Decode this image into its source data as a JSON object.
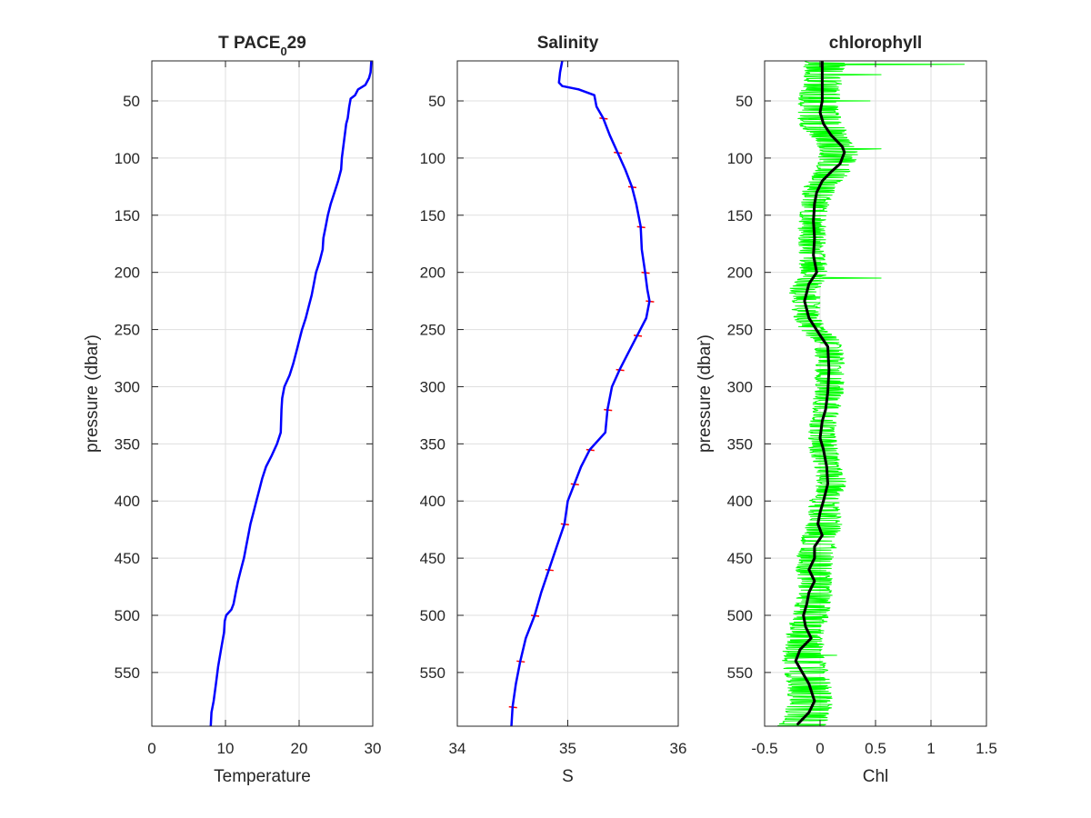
{
  "figure": {
    "background": "#ffffff",
    "axis_color": "#262626",
    "grid_color": "#dfdfdf"
  },
  "chart_data": [
    {
      "type": "line",
      "title": "T PACE",
      "title_subscript": "0",
      "title_suffix": "29",
      "xlabel": "Temperature",
      "ylabel": "pressure (dbar)",
      "xlim": [
        0,
        30
      ],
      "ylim": [
        15,
        597
      ],
      "y_reversed": true,
      "grid": true,
      "xticks": [
        0,
        10,
        20,
        30
      ],
      "yticks": [
        50,
        100,
        150,
        200,
        250,
        300,
        350,
        400,
        450,
        500,
        550
      ],
      "series": [
        {
          "color": "#0000ff",
          "width": 2.5,
          "points": [
            [
              29.8,
              15
            ],
            [
              29.7,
              25
            ],
            [
              29.5,
              30
            ],
            [
              29.0,
              36
            ],
            [
              28.0,
              40
            ],
            [
              27.6,
              45
            ],
            [
              27.0,
              48
            ],
            [
              26.8,
              55
            ],
            [
              26.6,
              65
            ],
            [
              26.4,
              70
            ],
            [
              26.2,
              80
            ],
            [
              26.0,
              90
            ],
            [
              25.8,
              100
            ],
            [
              25.7,
              110
            ],
            [
              25.3,
              120
            ],
            [
              24.8,
              130
            ],
            [
              24.3,
              140
            ],
            [
              23.9,
              150
            ],
            [
              23.6,
              160
            ],
            [
              23.3,
              170
            ],
            [
              23.2,
              180
            ],
            [
              22.8,
              190
            ],
            [
              22.3,
              200
            ],
            [
              22.0,
              210
            ],
            [
              21.7,
              220
            ],
            [
              21.3,
              230
            ],
            [
              20.9,
              240
            ],
            [
              20.4,
              250
            ],
            [
              20.0,
              260
            ],
            [
              19.6,
              270
            ],
            [
              19.2,
              280
            ],
            [
              18.7,
              290
            ],
            [
              18.0,
              300
            ],
            [
              17.7,
              310
            ],
            [
              17.6,
              320
            ],
            [
              17.5,
              340
            ],
            [
              17.0,
              350
            ],
            [
              16.3,
              360
            ],
            [
              15.5,
              370
            ],
            [
              15.0,
              380
            ],
            [
              14.6,
              390
            ],
            [
              14.2,
              400
            ],
            [
              13.8,
              410
            ],
            [
              13.4,
              420
            ],
            [
              13.1,
              430
            ],
            [
              12.8,
              440
            ],
            [
              12.5,
              450
            ],
            [
              12.1,
              460
            ],
            [
              11.7,
              470
            ],
            [
              11.4,
              480
            ],
            [
              11.1,
              490
            ],
            [
              10.8,
              495
            ],
            [
              10.1,
              500
            ],
            [
              9.9,
              505
            ],
            [
              9.8,
              515
            ],
            [
              9.4,
              530
            ],
            [
              9.0,
              545
            ],
            [
              8.7,
              560
            ],
            [
              8.4,
              575
            ],
            [
              8.1,
              585
            ],
            [
              8.0,
              597
            ]
          ]
        }
      ]
    },
    {
      "type": "line",
      "title": "Salinity",
      "xlabel": "S",
      "ylabel": "",
      "xlim": [
        34,
        36
      ],
      "ylim": [
        15,
        597
      ],
      "y_reversed": true,
      "grid": true,
      "xticks": [
        34,
        35,
        36
      ],
      "yticks": [
        50,
        100,
        150,
        200,
        250,
        300,
        350,
        400,
        450,
        500,
        550
      ],
      "series": [
        {
          "color": "#ff0000",
          "width": 1.2,
          "points": [
            [
              34.95,
              15
            ],
            [
              34.93,
              25
            ],
            [
              34.92,
              34
            ],
            [
              34.95,
              37
            ],
            [
              35.1,
              40
            ],
            [
              35.24,
              45
            ],
            [
              35.26,
              55
            ],
            [
              35.32,
              65
            ],
            [
              35.38,
              80
            ],
            [
              35.45,
              95
            ],
            [
              35.52,
              110
            ],
            [
              35.58,
              125
            ],
            [
              35.62,
              140
            ],
            [
              35.66,
              160
            ],
            [
              35.67,
              180
            ],
            [
              35.7,
              200
            ],
            [
              35.72,
              215
            ],
            [
              35.74,
              225
            ],
            [
              35.71,
              240
            ],
            [
              35.63,
              255
            ],
            [
              35.55,
              270
            ],
            [
              35.47,
              285
            ],
            [
              35.4,
              300
            ],
            [
              35.36,
              320
            ],
            [
              35.34,
              340
            ],
            [
              35.2,
              355
            ],
            [
              35.12,
              370
            ],
            [
              35.06,
              385
            ],
            [
              35.0,
              400
            ],
            [
              34.97,
              420
            ],
            [
              34.9,
              440
            ],
            [
              34.83,
              460
            ],
            [
              34.76,
              480
            ],
            [
              34.7,
              500
            ],
            [
              34.62,
              520
            ],
            [
              34.57,
              540
            ],
            [
              34.53,
              560
            ],
            [
              34.5,
              580
            ],
            [
              34.49,
              597
            ]
          ]
        },
        {
          "color": "#0000ff",
          "width": 2.5,
          "points": [
            [
              34.95,
              15
            ],
            [
              34.93,
              25
            ],
            [
              34.92,
              34
            ],
            [
              34.95,
              37
            ],
            [
              35.1,
              40
            ],
            [
              35.24,
              45
            ],
            [
              35.26,
              55
            ],
            [
              35.32,
              65
            ],
            [
              35.38,
              80
            ],
            [
              35.45,
              95
            ],
            [
              35.52,
              110
            ],
            [
              35.58,
              125
            ],
            [
              35.62,
              140
            ],
            [
              35.66,
              160
            ],
            [
              35.67,
              180
            ],
            [
              35.7,
              200
            ],
            [
              35.72,
              215
            ],
            [
              35.74,
              225
            ],
            [
              35.71,
              240
            ],
            [
              35.63,
              255
            ],
            [
              35.55,
              270
            ],
            [
              35.47,
              285
            ],
            [
              35.4,
              300
            ],
            [
              35.36,
              320
            ],
            [
              35.34,
              340
            ],
            [
              35.2,
              355
            ],
            [
              35.12,
              370
            ],
            [
              35.06,
              385
            ],
            [
              35.0,
              400
            ],
            [
              34.97,
              420
            ],
            [
              34.9,
              440
            ],
            [
              34.83,
              460
            ],
            [
              34.76,
              480
            ],
            [
              34.7,
              500
            ],
            [
              34.62,
              520
            ],
            [
              34.57,
              540
            ],
            [
              34.53,
              560
            ],
            [
              34.5,
              580
            ],
            [
              34.49,
              597
            ]
          ]
        }
      ]
    },
    {
      "type": "line",
      "title": "chlorophyll",
      "xlabel": "Chl",
      "ylabel": "pressure (dbar)",
      "xlim": [
        -0.5,
        1.5
      ],
      "ylim": [
        15,
        597
      ],
      "y_reversed": true,
      "grid": true,
      "xticks": [
        -0.5,
        0,
        0.5,
        1,
        1.5
      ],
      "yticks": [
        50,
        100,
        150,
        200,
        250,
        300,
        350,
        400,
        450,
        500,
        550
      ],
      "series": [
        {
          "color": "#00ff00",
          "width": 1.0,
          "band": [
            [
              15,
              -0.15,
              0.25
            ],
            [
              30,
              -0.15,
              0.2
            ],
            [
              50,
              -0.2,
              0.18
            ],
            [
              70,
              -0.2,
              0.2
            ],
            [
              85,
              -0.05,
              0.3
            ],
            [
              95,
              0.0,
              0.35
            ],
            [
              110,
              -0.05,
              0.3
            ],
            [
              125,
              -0.15,
              0.15
            ],
            [
              140,
              -0.18,
              0.08
            ],
            [
              160,
              -0.2,
              0.05
            ],
            [
              180,
              -0.2,
              0.05
            ],
            [
              200,
              -0.18,
              0.07
            ],
            [
              215,
              -0.28,
              0.0
            ],
            [
              235,
              -0.25,
              0.0
            ],
            [
              250,
              -0.2,
              0.05
            ],
            [
              260,
              -0.05,
              0.2
            ],
            [
              280,
              -0.05,
              0.22
            ],
            [
              300,
              -0.05,
              0.22
            ],
            [
              320,
              -0.07,
              0.18
            ],
            [
              340,
              -0.12,
              0.14
            ],
            [
              355,
              -0.1,
              0.16
            ],
            [
              370,
              -0.05,
              0.2
            ],
            [
              385,
              -0.03,
              0.24
            ],
            [
              400,
              -0.1,
              0.17
            ],
            [
              420,
              -0.12,
              0.2
            ],
            [
              440,
              -0.2,
              0.15
            ],
            [
              460,
              -0.22,
              0.1
            ],
            [
              480,
              -0.2,
              0.12
            ],
            [
              500,
              -0.25,
              0.08
            ],
            [
              520,
              -0.32,
              0.03
            ],
            [
              540,
              -0.35,
              0.05
            ],
            [
              560,
              -0.3,
              0.1
            ],
            [
              580,
              -0.3,
              0.12
            ],
            [
              597,
              -0.4,
              0.05
            ]
          ],
          "spikes": [
            [
              18,
              1.3
            ],
            [
              27,
              0.55
            ],
            [
              50,
              0.45
            ],
            [
              92,
              0.55
            ],
            [
              205,
              0.55
            ],
            [
              535,
              0.15
            ]
          ]
        },
        {
          "color": "#000000",
          "width": 3,
          "points": [
            [
              0.02,
              15
            ],
            [
              0.02,
              30
            ],
            [
              0.02,
              50
            ],
            [
              0.0,
              60
            ],
            [
              0.03,
              70
            ],
            [
              0.1,
              80
            ],
            [
              0.2,
              90
            ],
            [
              0.22,
              95
            ],
            [
              0.18,
              105
            ],
            [
              0.1,
              112
            ],
            [
              0.02,
              120
            ],
            [
              -0.03,
              130
            ],
            [
              -0.05,
              140
            ],
            [
              -0.06,
              155
            ],
            [
              -0.05,
              170
            ],
            [
              -0.06,
              185
            ],
            [
              -0.03,
              200
            ],
            [
              -0.1,
              210
            ],
            [
              -0.14,
              225
            ],
            [
              -0.1,
              240
            ],
            [
              0.0,
              255
            ],
            [
              0.07,
              265
            ],
            [
              0.08,
              285
            ],
            [
              0.07,
              305
            ],
            [
              0.05,
              320
            ],
            [
              0.02,
              330
            ],
            [
              0.0,
              345
            ],
            [
              0.03,
              355
            ],
            [
              0.06,
              370
            ],
            [
              0.07,
              385
            ],
            [
              0.03,
              400
            ],
            [
              0.0,
              410
            ],
            [
              -0.02,
              420
            ],
            [
              0.02,
              430
            ],
            [
              -0.05,
              440
            ],
            [
              -0.05,
              450
            ],
            [
              -0.1,
              460
            ],
            [
              -0.05,
              470
            ],
            [
              -0.1,
              480
            ],
            [
              -0.12,
              490
            ],
            [
              -0.15,
              500
            ],
            [
              -0.13,
              510
            ],
            [
              -0.08,
              520
            ],
            [
              -0.18,
              530
            ],
            [
              -0.22,
              540
            ],
            [
              -0.1,
              560
            ],
            [
              -0.05,
              575
            ],
            [
              -0.1,
              585
            ],
            [
              -0.2,
              595
            ]
          ]
        }
      ]
    }
  ]
}
